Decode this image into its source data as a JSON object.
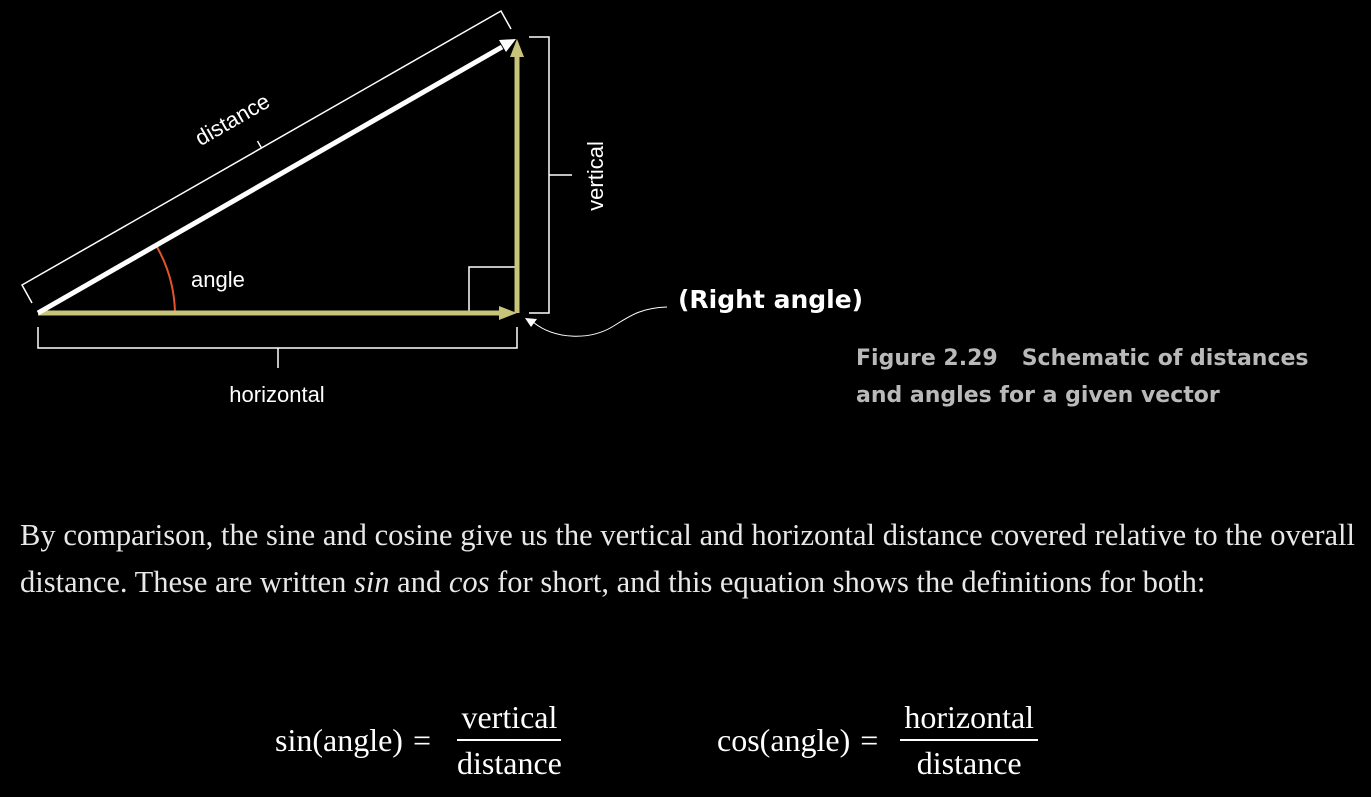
{
  "figure": {
    "labels": {
      "distance": "distance",
      "vertical": "vertical",
      "angle": "angle",
      "horizontal": "horizontal",
      "right_angle": "(Right angle)"
    },
    "caption": {
      "number": "Figure 2.29",
      "text_line1": "Schematic of distances",
      "text_line2": "and angles for a given vector"
    },
    "colors": {
      "vector": "#ffffff",
      "components": "#c8c47a",
      "angle_arc": "#e0552b",
      "brackets": "#ffffff",
      "caption": "#b9b9b9"
    }
  },
  "body": {
    "paragraph": {
      "part1": "By comparison, the sine and cosine give us the vertical and horizontal distance covered relative to the overall distance. These are written ",
      "sin_italic": "sin",
      "part2": " and ",
      "cos_italic": "cos",
      "part3": " for short, and this equation shows the definitions for both:"
    }
  },
  "equations": {
    "sin": {
      "lhs": "sin(angle)",
      "equals": "=",
      "numerator": "vertical",
      "denominator": "distance"
    },
    "cos": {
      "lhs": "cos(angle)",
      "equals": "=",
      "numerator": "horizontal",
      "denominator": "distance"
    }
  }
}
